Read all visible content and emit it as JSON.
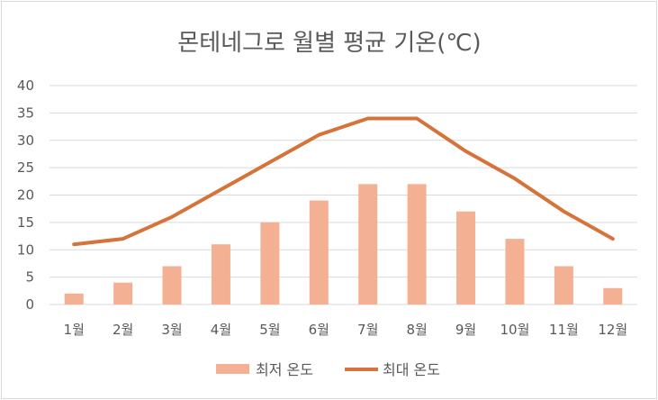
{
  "chart_data": {
    "type": "bar",
    "title": "몬테네그로 월별 평균 기온(℃)",
    "categories": [
      "1월",
      "2월",
      "3월",
      "4월",
      "5월",
      "6월",
      "7월",
      "8월",
      "9월",
      "10월",
      "11월",
      "12월"
    ],
    "series": [
      {
        "name": "최저 온도",
        "kind": "bar",
        "color": "#f4b093",
        "values": [
          2,
          4,
          7,
          11,
          15,
          19,
          22,
          22,
          17,
          12,
          7,
          3
        ]
      },
      {
        "name": "최대 온도",
        "kind": "line",
        "color": "#d5733a",
        "values": [
          11,
          12,
          16,
          21,
          26,
          31,
          34,
          34,
          28,
          23,
          17,
          12
        ]
      }
    ],
    "y_ticks": [
      "0",
      "5",
      "10",
      "15",
      "20",
      "25",
      "30",
      "35",
      "40"
    ],
    "ylim": [
      0,
      40
    ],
    "xlabel": "",
    "ylabel": "",
    "grid": true,
    "legend_position": "bottom"
  }
}
